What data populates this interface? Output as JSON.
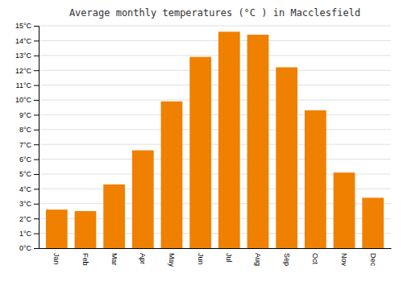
{
  "chart_data": {
    "type": "bar",
    "title": "Average monthly temperatures (°C ) in Macclesfield",
    "categories": [
      "Jan",
      "Feb",
      "Mar",
      "Apr",
      "May",
      "Jun",
      "Jul",
      "Aug",
      "Sep",
      "Oct",
      "Nov",
      "Dec"
    ],
    "values": [
      2.6,
      2.5,
      4.3,
      6.6,
      9.9,
      12.9,
      14.6,
      14.4,
      12.2,
      9.3,
      5.1,
      3.4
    ],
    "color": "#F08000",
    "ylim": [
      0,
      15
    ],
    "yticks": [
      {
        "value": 0,
        "label": "0°C"
      },
      {
        "value": 1,
        "label": "1°C"
      },
      {
        "value": 2,
        "label": "2°C"
      },
      {
        "value": 3,
        "label": "3°C"
      },
      {
        "value": 4,
        "label": "4°C"
      },
      {
        "value": 5,
        "label": "5°C"
      },
      {
        "value": 6,
        "label": "6°C"
      },
      {
        "value": 7,
        "label": "7°C"
      },
      {
        "value": 8,
        "label": "8°C"
      },
      {
        "value": 9,
        "label": "9°C"
      },
      {
        "value": 10,
        "label": "10°C"
      },
      {
        "value": 11,
        "label": "11°C"
      },
      {
        "value": 12,
        "label": "12°C"
      },
      {
        "value": 13,
        "label": "13°C"
      },
      {
        "value": 14,
        "label": "14°C"
      },
      {
        "value": 15,
        "label": "15°C"
      }
    ],
    "grid": true
  }
}
